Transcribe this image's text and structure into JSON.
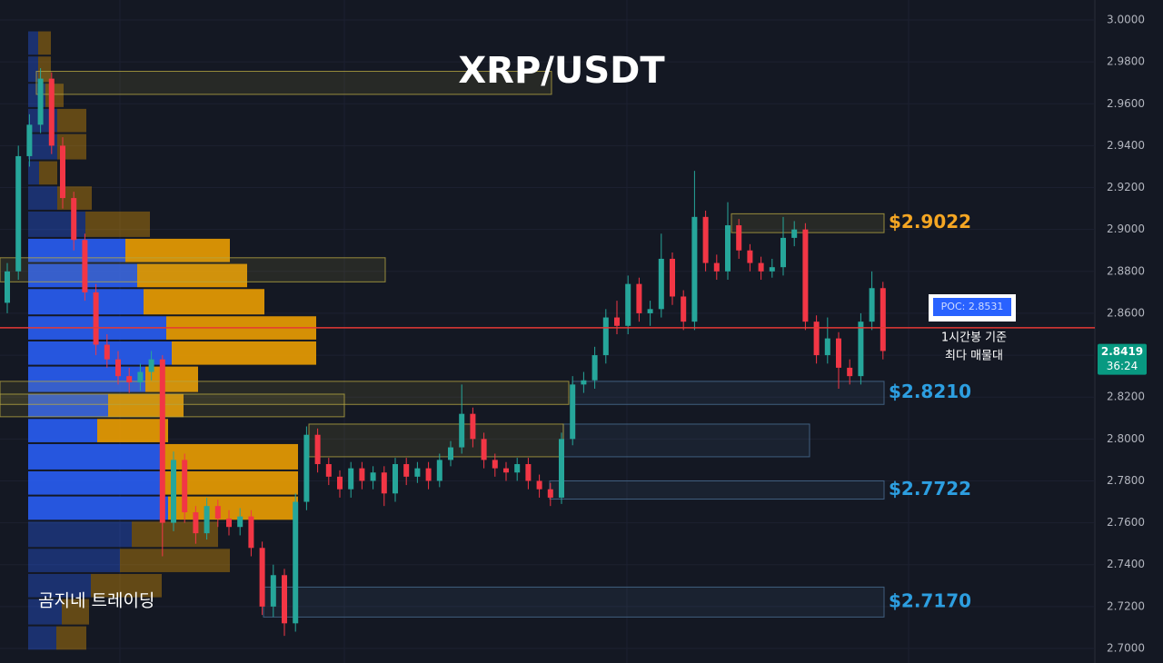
{
  "chart_data": {
    "type": "candlestick",
    "title": "XRP/USDT",
    "ylim": [
      2.7,
      3.0
    ],
    "yticks": [
      {
        "value": 2.7,
        "label": "2.7000"
      },
      {
        "value": 2.72,
        "label": "2.7200"
      },
      {
        "value": 2.74,
        "label": "2.7400"
      },
      {
        "value": 2.76,
        "label": "2.7600"
      },
      {
        "value": 2.78,
        "label": "2.7800"
      },
      {
        "value": 2.8,
        "label": "2.8000"
      },
      {
        "value": 2.82,
        "label": "2.8200"
      },
      {
        "value": 2.84,
        "label": "2.8400"
      },
      {
        "value": 2.86,
        "label": "2.8600"
      },
      {
        "value": 2.88,
        "label": "2.8800"
      },
      {
        "value": 2.9,
        "label": "2.9000"
      },
      {
        "value": 2.92,
        "label": "2.9200"
      },
      {
        "value": 2.94,
        "label": "2.9400"
      },
      {
        "value": 2.96,
        "label": "2.9600"
      },
      {
        "value": 2.98,
        "label": "2.9800"
      },
      {
        "value": 3.0,
        "label": "3.0000"
      }
    ],
    "up_color": "#26a69a",
    "down_color": "#f23645",
    "open": [
      2.865,
      2.88,
      2.935,
      2.95,
      2.972,
      2.94,
      2.915,
      2.895,
      2.87,
      2.845,
      2.838,
      2.83,
      2.827,
      2.832,
      2.838,
      2.76,
      2.79,
      2.765,
      2.755,
      2.768,
      2.762,
      2.758,
      2.763,
      2.748,
      2.72,
      2.735,
      2.712,
      2.77,
      2.802,
      2.788,
      2.782,
      2.776,
      2.786,
      2.78,
      2.784,
      2.774,
      2.788,
      2.782,
      2.786,
      2.78,
      2.79,
      2.796,
      2.812,
      2.8,
      2.79,
      2.786,
      2.784,
      2.788,
      2.78,
      2.776,
      2.772,
      2.8,
      2.826,
      2.828,
      2.84,
      2.858,
      2.854,
      2.874,
      2.86,
      2.862,
      2.886,
      2.868,
      2.856,
      2.906,
      2.884,
      2.88,
      2.902,
      2.89,
      2.884,
      2.88,
      2.882,
      2.896,
      2.9,
      2.856,
      2.84,
      2.848,
      2.834,
      2.83,
      2.856,
      2.872
    ],
    "high": [
      2.884,
      2.94,
      2.955,
      2.977,
      2.975,
      2.944,
      2.918,
      2.898,
      2.874,
      2.85,
      2.842,
      2.834,
      2.836,
      2.842,
      2.84,
      2.794,
      2.793,
      2.768,
      2.772,
      2.771,
      2.766,
      2.767,
      2.766,
      2.751,
      2.74,
      2.738,
      2.774,
      2.806,
      2.805,
      2.791,
      2.785,
      2.789,
      2.789,
      2.787,
      2.787,
      2.791,
      2.791,
      2.789,
      2.789,
      2.793,
      2.799,
      2.826,
      2.815,
      2.803,
      2.793,
      2.789,
      2.791,
      2.791,
      2.783,
      2.779,
      2.803,
      2.83,
      2.832,
      2.844,
      2.862,
      2.866,
      2.878,
      2.877,
      2.866,
      2.898,
      2.889,
      2.871,
      2.928,
      2.909,
      2.888,
      2.913,
      2.905,
      2.893,
      2.887,
      2.886,
      2.906,
      2.904,
      2.903,
      2.859,
      2.858,
      2.851,
      2.838,
      2.86,
      2.88,
      2.875
    ],
    "low": [
      2.86,
      2.876,
      2.93,
      2.946,
      2.936,
      2.91,
      2.89,
      2.866,
      2.84,
      2.834,
      2.826,
      2.822,
      2.823,
      2.828,
      2.744,
      2.756,
      2.76,
      2.75,
      2.752,
      2.758,
      2.754,
      2.754,
      2.744,
      2.716,
      2.715,
      2.706,
      2.708,
      2.766,
      2.784,
      2.778,
      2.772,
      2.772,
      2.776,
      2.776,
      2.768,
      2.77,
      2.778,
      2.779,
      2.776,
      2.777,
      2.787,
      2.793,
      2.796,
      2.786,
      2.782,
      2.78,
      2.78,
      2.776,
      2.772,
      2.768,
      2.769,
      2.797,
      2.822,
      2.824,
      2.836,
      2.85,
      2.85,
      2.856,
      2.854,
      2.858,
      2.864,
      2.852,
      2.852,
      2.88,
      2.876,
      2.876,
      2.886,
      2.88,
      2.876,
      2.877,
      2.878,
      2.892,
      2.852,
      2.836,
      2.836,
      2.824,
      2.826,
      2.826,
      2.852,
      2.838
    ],
    "close": [
      2.88,
      2.935,
      2.95,
      2.972,
      2.94,
      2.915,
      2.895,
      2.87,
      2.845,
      2.838,
      2.83,
      2.827,
      2.832,
      2.838,
      2.76,
      2.79,
      2.765,
      2.755,
      2.768,
      2.762,
      2.758,
      2.763,
      2.748,
      2.72,
      2.735,
      2.712,
      2.77,
      2.802,
      2.788,
      2.782,
      2.776,
      2.786,
      2.78,
      2.784,
      2.774,
      2.788,
      2.782,
      2.786,
      2.78,
      2.79,
      2.796,
      2.812,
      2.8,
      2.79,
      2.786,
      2.784,
      2.788,
      2.78,
      2.776,
      2.772,
      2.8,
      2.826,
      2.828,
      2.84,
      2.858,
      2.854,
      2.874,
      2.86,
      2.862,
      2.886,
      2.868,
      2.856,
      2.906,
      2.884,
      2.88,
      2.902,
      2.89,
      2.884,
      2.88,
      2.882,
      2.896,
      2.9,
      2.856,
      2.84,
      2.848,
      2.834,
      2.83,
      2.856,
      2.872,
      2.842
    ],
    "profile": {
      "bins": [
        2.699,
        2.711,
        2.724,
        2.736,
        2.748,
        2.761,
        2.773,
        2.785,
        2.798,
        2.81,
        2.822,
        2.835,
        2.847,
        2.859,
        2.872,
        2.884,
        2.896,
        2.909,
        2.921,
        2.933,
        2.946,
        2.958,
        2.97,
        2.983,
        2.995
      ],
      "buy": [
        31,
        37,
        69,
        101,
        114,
        154,
        147,
        147,
        76,
        88,
        129,
        158,
        152,
        127,
        120,
        107,
        63,
        32,
        12,
        32,
        32,
        19,
        11,
        11
      ],
      "sell": [
        33,
        30,
        78,
        121,
        95,
        143,
        150,
        150,
        78,
        83,
        58,
        159,
        165,
        133,
        121,
        115,
        71,
        38,
        20,
        32,
        32,
        20,
        14,
        14
      ],
      "buy_color": "#2962ff",
      "sell_color": "#f7a600",
      "value_area": [
        2.761,
        2.896
      ]
    },
    "zones": [
      {
        "range": [
          2.9645,
          2.9755
        ],
        "color": "#b5a642"
      },
      {
        "range": [
          2.875,
          2.8865
        ],
        "color": "#b5a642"
      },
      {
        "range": [
          2.8985,
          2.9075
        ],
        "color": "#b5a642",
        "label": "$2.9022",
        "label_color": "#f5a623"
      },
      {
        "range": [
          2.8165,
          2.8275
        ],
        "color": "#b5a642"
      },
      {
        "range": [
          2.8165,
          2.8275
        ],
        "color": "#4a6f94",
        "label": "$2.8210",
        "label_color": "#2d9ee0"
      },
      {
        "range": [
          2.8106,
          2.8214
        ],
        "color": "#b5a642"
      },
      {
        "range": [
          2.7915,
          2.8071
        ],
        "color": "#4a6f94"
      },
      {
        "range": [
          2.7915,
          2.8071
        ],
        "color": "#b5a642"
      },
      {
        "range": [
          2.7713,
          2.78
        ],
        "color": "#4a6f94",
        "label": "$2.7722",
        "label_color": "#2d9ee0"
      },
      {
        "range": [
          2.715,
          2.7293
        ],
        "color": "#4a6f94",
        "label": "$2.7170",
        "label_color": "#2d9ee0"
      }
    ],
    "poc": {
      "value": 2.8531,
      "label": "POC: 2.8531",
      "color": "#e53935"
    },
    "last_price": {
      "value": 2.8419,
      "countdown": "36:24",
      "color": "#089981"
    },
    "annotations": [
      "1시간봉 기준",
      "최다 매물대",
      "곰지네 트레이딩"
    ]
  }
}
